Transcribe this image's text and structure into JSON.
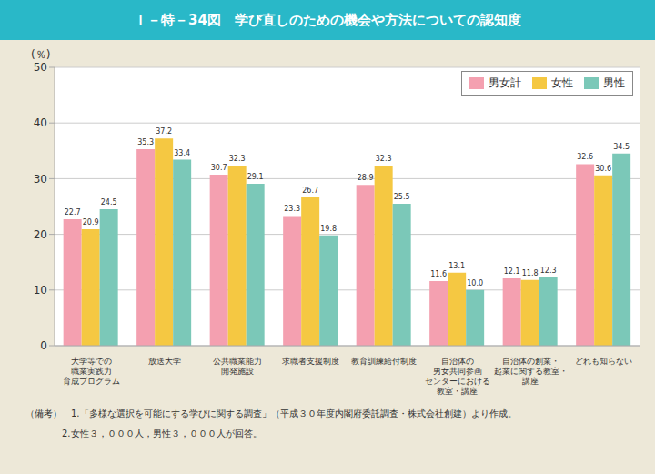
{
  "chart_data": {
    "type": "bar",
    "title": "Ｉ－特－34図　学び直しのための機会や方法についての認知度",
    "ylabel": "(％)",
    "categories": [
      "大学等での\n職業実践力\n育成プログラム",
      "放送大学",
      "公共職業能力\n開発施設",
      "求職者支援制度",
      "教育訓練給付制度",
      "自治体の\n男女共同参画\nセンターにおける\n教室・講座",
      "自治体の創業・\n起業に関する教室・\n講座",
      "どれも知らない"
    ],
    "series": [
      {
        "name": "男女計",
        "color": "#F4A0B0",
        "values": [
          22.7,
          35.3,
          30.7,
          23.3,
          28.9,
          11.6,
          12.1,
          32.6
        ],
        "value_labels": [
          "22.7",
          "35.3",
          "30.7",
          "23.3",
          "28.9",
          "11.6",
          "12.1",
          "32.6"
        ]
      },
      {
        "name": "女性",
        "color": "#F5C842",
        "values": [
          20.9,
          37.2,
          32.3,
          26.7,
          32.3,
          13.1,
          11.8,
          30.6
        ],
        "value_labels": [
          "20.9",
          "37.2",
          "32.3",
          "26.7",
          "32.3",
          "13.1",
          "11.8",
          "30.6"
        ]
      },
      {
        "name": "男性",
        "color": "#7BC8B8",
        "values": [
          24.5,
          33.4,
          29.1,
          19.8,
          25.5,
          10.0,
          12.3,
          34.5
        ],
        "value_labels": [
          "24.5",
          "33.4",
          "29.1",
          "19.8",
          "25.5",
          "10.0",
          "12.3",
          "34.5"
        ]
      }
    ],
    "ylim": [
      0,
      50
    ],
    "yticks": [
      0,
      10,
      20,
      30,
      40,
      50
    ],
    "grid": true,
    "legend": "upper right",
    "data_labels": true,
    "annotations": [
      "（備考）　1.「多様な選択を可能にする学びに関する調査」（平成３０年度内閣府委託調査・株式会社創建）より作成。",
      "　　　　2.女性３，０００人，男性３，０００人が回答。"
    ]
  }
}
